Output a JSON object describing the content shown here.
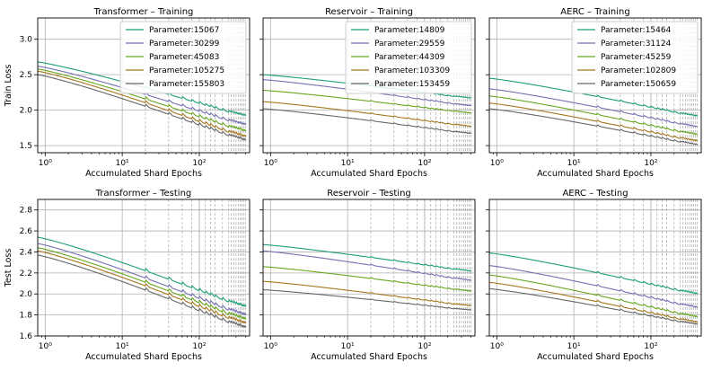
{
  "colors": [
    "#1b9e77",
    "#7570b3",
    "#66a61e",
    "#a6761d",
    "#666666"
  ],
  "chart_data": [
    {
      "type": "line",
      "title": "Transformer – Training",
      "xlabel": "Accumulated Shard Epochs",
      "ylabel": "Train Loss",
      "xscale": "log",
      "xlim": [
        0.8,
        450
      ],
      "ylim": [
        1.4,
        3.3
      ],
      "yticks": [
        1.5,
        2.0,
        2.5,
        3.0
      ],
      "ytick_labels": [
        "1.5",
        "2.0",
        "2.5",
        "3.0"
      ],
      "xticks": [
        1,
        10,
        100
      ],
      "xtick_labels": [
        "10⁰",
        "10¹",
        "10²"
      ],
      "grid": true,
      "legend": "top-right",
      "series": [
        {
          "name": "Parameter:15067",
          "start": 2.68,
          "end": 1.9
        },
        {
          "name": "Parameter:30299",
          "start": 2.62,
          "end": 1.77
        },
        {
          "name": "Parameter:45083",
          "start": 2.58,
          "end": 1.68
        },
        {
          "name": "Parameter:105275",
          "start": 2.55,
          "end": 1.6
        },
        {
          "name": "Parameter:155803",
          "start": 2.5,
          "end": 1.55
        }
      ]
    },
    {
      "type": "line",
      "title": "Reservoir – Training",
      "xlabel": "Accumulated Shard Epochs",
      "ylabel": "",
      "xscale": "log",
      "xlim": [
        0.8,
        450
      ],
      "ylim": [
        1.4,
        3.3
      ],
      "yticks": [
        1.5,
        2.0,
        2.5,
        3.0
      ],
      "ytick_labels": [
        "",
        "",
        "",
        ""
      ],
      "xticks": [
        1,
        10,
        100
      ],
      "xtick_labels": [
        "10⁰",
        "10¹",
        "10²"
      ],
      "grid": true,
      "legend": "top-right",
      "series": [
        {
          "name": "Parameter:14809",
          "start": 2.5,
          "end": 2.16
        },
        {
          "name": "Parameter:29559",
          "start": 2.43,
          "end": 2.05
        },
        {
          "name": "Parameter:44309",
          "start": 2.28,
          "end": 1.95
        },
        {
          "name": "Parameter:103309",
          "start": 2.12,
          "end": 1.76
        },
        {
          "name": "Parameter:153459",
          "start": 2.02,
          "end": 1.66
        }
      ]
    },
    {
      "type": "line",
      "title": "AERC – Training",
      "xlabel": "Accumulated Shard Epochs",
      "ylabel": "",
      "xscale": "log",
      "xlim": [
        0.8,
        450
      ],
      "ylim": [
        1.4,
        3.3
      ],
      "yticks": [
        1.5,
        2.0,
        2.5,
        3.0
      ],
      "ytick_labels": [
        "",
        "",
        "",
        ""
      ],
      "xticks": [
        1,
        10,
        100
      ],
      "xtick_labels": [
        "10⁰",
        "10¹",
        "10²"
      ],
      "grid": true,
      "legend": "top-right",
      "series": [
        {
          "name": "Parameter:15464",
          "start": 2.45,
          "end": 1.9
        },
        {
          "name": "Parameter:31124",
          "start": 2.3,
          "end": 1.75
        },
        {
          "name": "Parameter:45259",
          "start": 2.2,
          "end": 1.64
        },
        {
          "name": "Parameter:102809",
          "start": 2.1,
          "end": 1.55
        },
        {
          "name": "Parameter:150659",
          "start": 2.02,
          "end": 1.5
        }
      ]
    },
    {
      "type": "line",
      "title": "Transformer – Testing",
      "xlabel": "Accumulated Shard Epochs",
      "ylabel": "Test Loss",
      "xscale": "log",
      "xlim": [
        0.8,
        450
      ],
      "ylim": [
        1.6,
        2.9
      ],
      "yticks": [
        1.6,
        1.8,
        2.0,
        2.2,
        2.4,
        2.6,
        2.8
      ],
      "ytick_labels": [
        "1.6",
        "1.8",
        "2.0",
        "2.2",
        "2.4",
        "2.6",
        "2.8"
      ],
      "xticks": [
        1,
        10,
        100
      ],
      "xtick_labels": [
        "10⁰",
        "10¹",
        "10²"
      ],
      "grid": true,
      "legend": "none",
      "series": [
        {
          "start": 2.54,
          "end": 1.86
        },
        {
          "start": 2.48,
          "end": 1.78
        },
        {
          "start": 2.44,
          "end": 1.74
        },
        {
          "start": 2.41,
          "end": 1.7
        },
        {
          "start": 2.37,
          "end": 1.66
        }
      ]
    },
    {
      "type": "line",
      "title": "Reservoir – Testing",
      "xlabel": "Accumulated Shard Epochs",
      "ylabel": "",
      "xscale": "log",
      "xlim": [
        0.8,
        450
      ],
      "ylim": [
        1.6,
        2.9
      ],
      "yticks": [
        1.6,
        1.8,
        2.0,
        2.2,
        2.4,
        2.6,
        2.8
      ],
      "ytick_labels": [
        "",
        "",
        "",
        "",
        "",
        "",
        ""
      ],
      "xticks": [
        1,
        10,
        100
      ],
      "xtick_labels": [
        "10⁰",
        "10¹",
        "10²"
      ],
      "grid": true,
      "legend": "none",
      "series": [
        {
          "start": 2.47,
          "end": 2.21
        },
        {
          "start": 2.41,
          "end": 2.12
        },
        {
          "start": 2.26,
          "end": 2.02
        },
        {
          "start": 2.12,
          "end": 1.88
        },
        {
          "start": 2.04,
          "end": 1.84
        }
      ]
    },
    {
      "type": "line",
      "title": "AERC – Testing",
      "xlabel": "Accumulated Shard Epochs",
      "ylabel": "",
      "xscale": "log",
      "xlim": [
        0.8,
        450
      ],
      "ylim": [
        1.6,
        2.9
      ],
      "yticks": [
        1.6,
        1.8,
        2.0,
        2.2,
        2.4,
        2.6,
        2.8
      ],
      "ytick_labels": [
        "",
        "",
        "",
        "",
        "",
        "",
        ""
      ],
      "xticks": [
        1,
        10,
        100
      ],
      "xtick_labels": [
        "10⁰",
        "10¹",
        "10²"
      ],
      "grid": true,
      "legend": "none",
      "series": [
        {
          "start": 2.39,
          "end": 1.99
        },
        {
          "start": 2.27,
          "end": 1.86
        },
        {
          "start": 2.18,
          "end": 1.77
        },
        {
          "start": 2.11,
          "end": 1.72
        },
        {
          "start": 2.05,
          "end": 1.7
        }
      ]
    }
  ]
}
